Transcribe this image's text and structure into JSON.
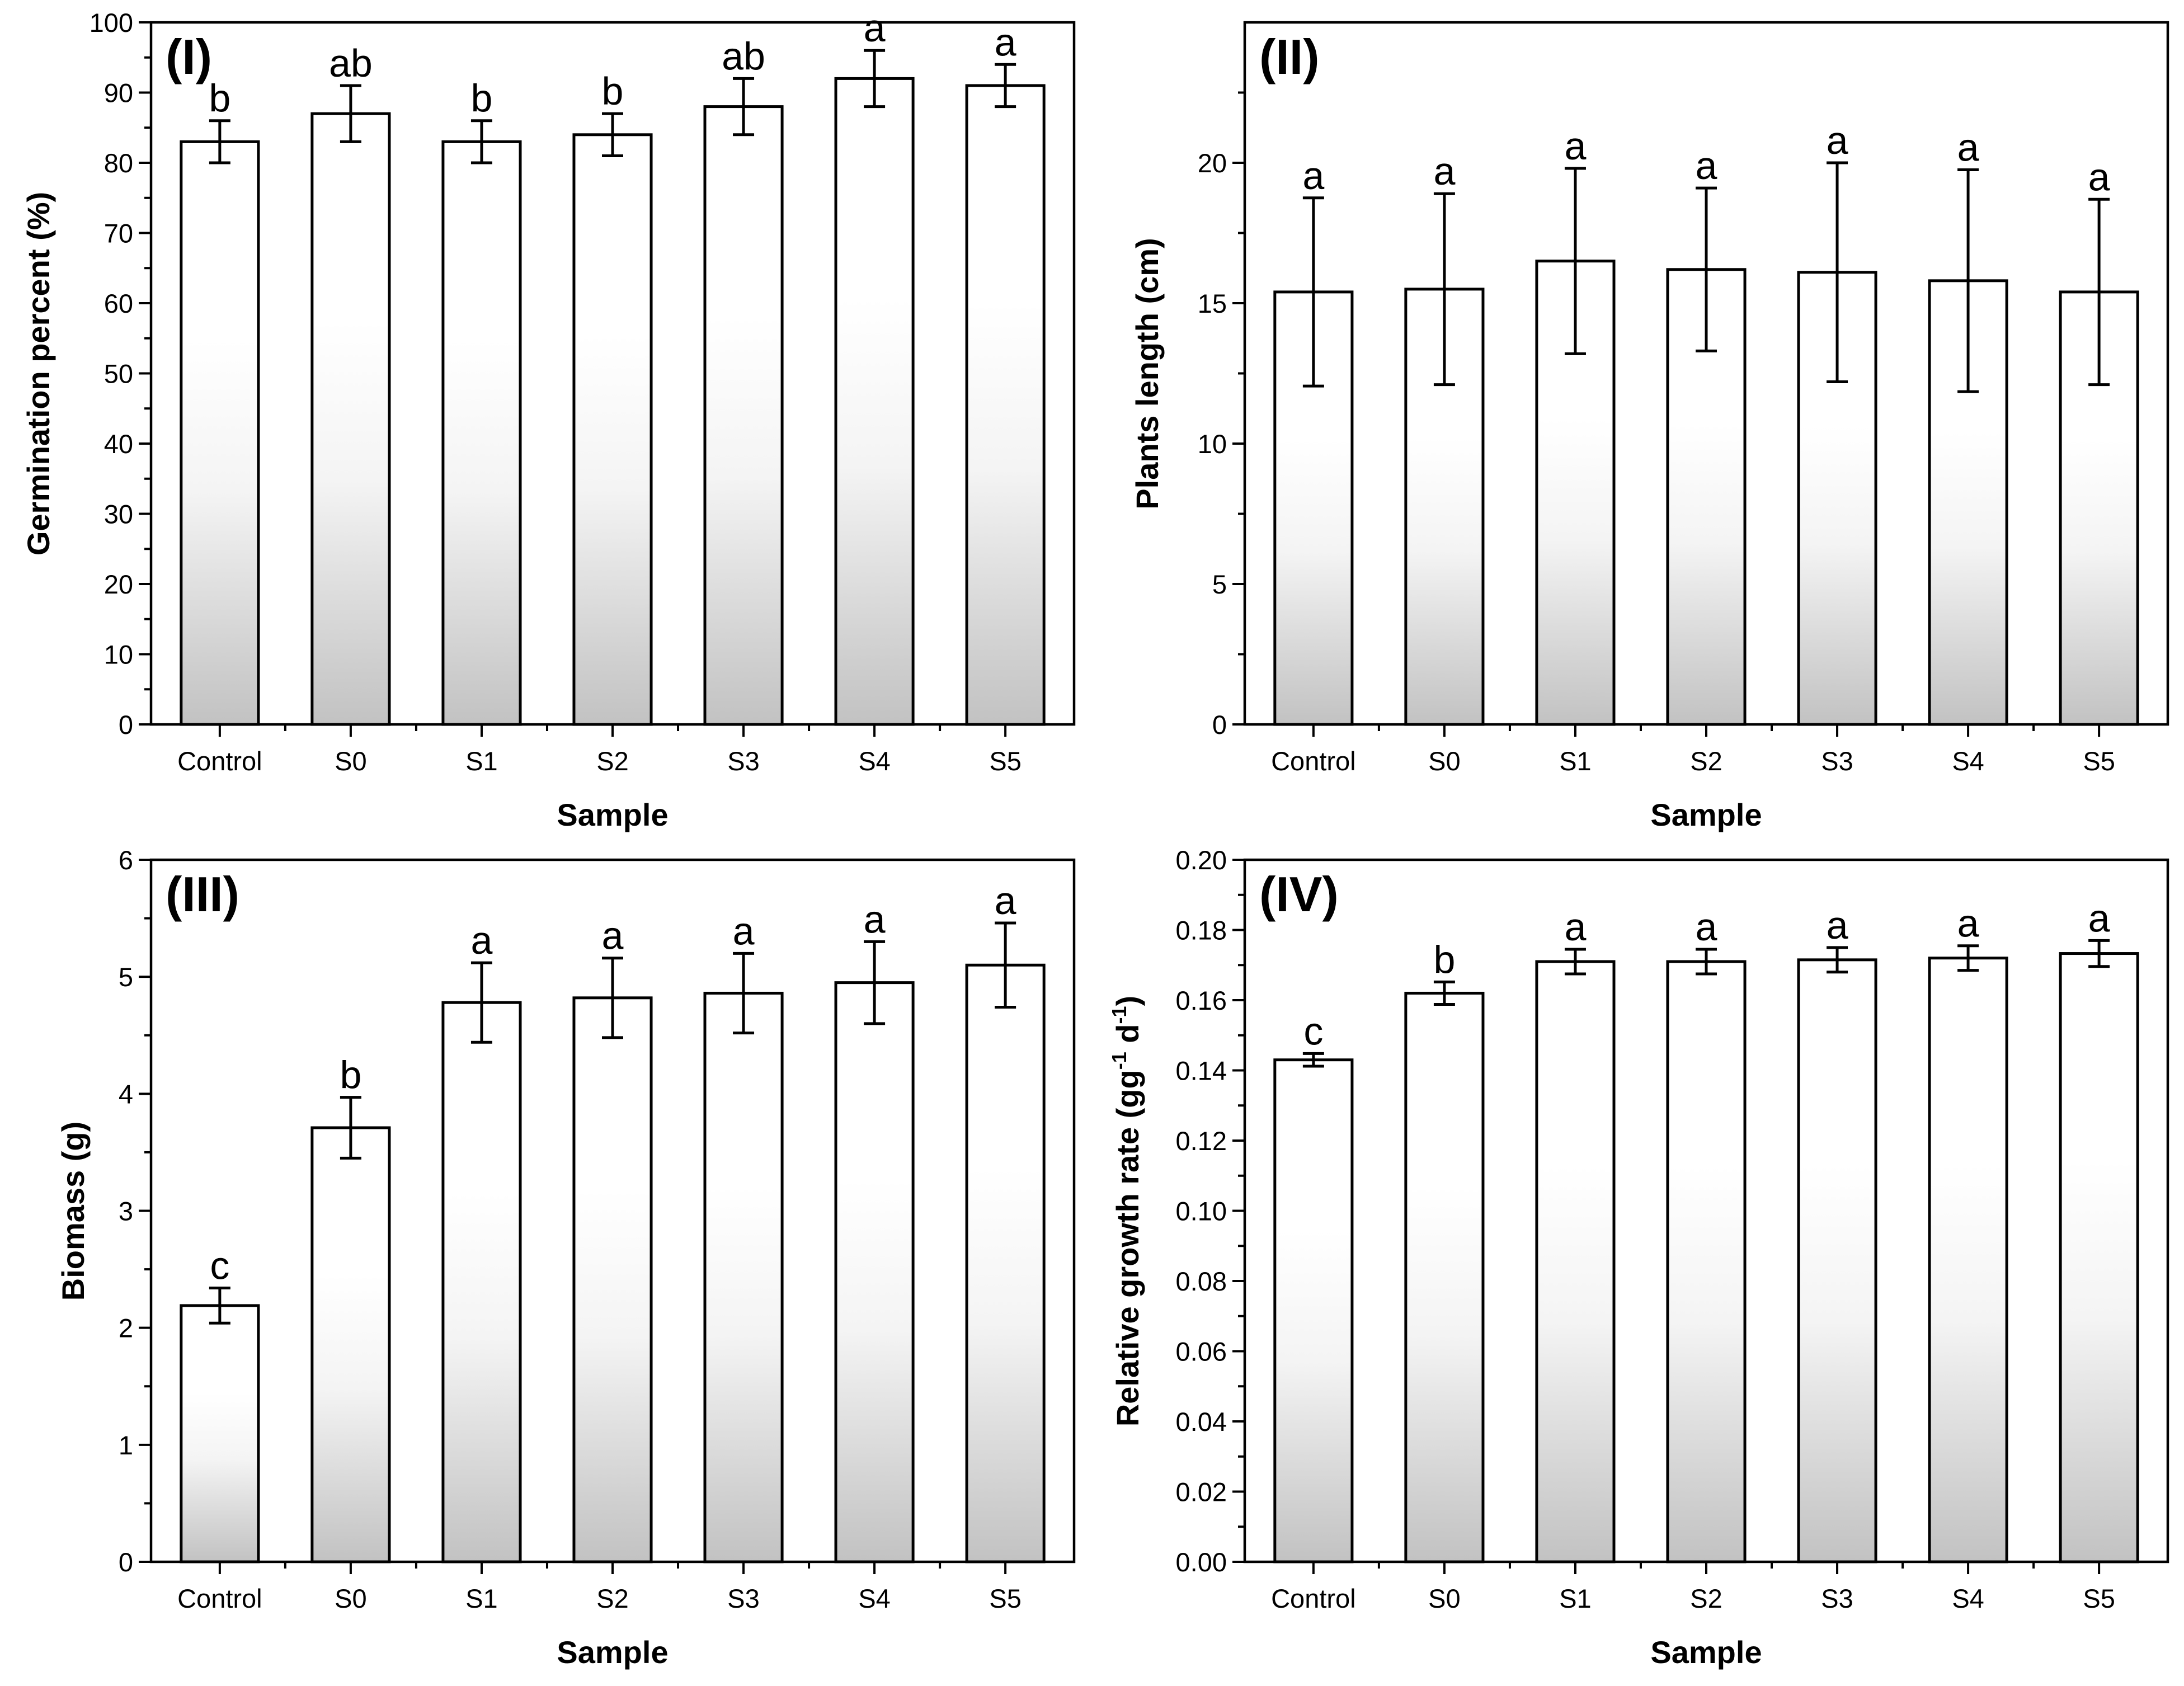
{
  "colors": {
    "axis": "#000000",
    "bar_stroke": "#000000",
    "bar_fill_top": "#ffffff",
    "bar_fill_mid": "#f4f4f4",
    "bar_fill_bottom": "#c2c2c2"
  },
  "chart_data": [
    {
      "type": "bar",
      "panel_label": "(I)",
      "title": "",
      "xlabel": "Sample",
      "ylabel": "Germination percent (%)",
      "ylim": [
        0,
        100
      ],
      "yticks": [
        0,
        10,
        20,
        30,
        40,
        50,
        60,
        70,
        80,
        90,
        100
      ],
      "ytick_labels": [
        "0",
        "10",
        "20",
        "30",
        "40",
        "50",
        "60",
        "70",
        "80",
        "90",
        "100"
      ],
      "categories": [
        "Control",
        "S0",
        "S1",
        "S2",
        "S3",
        "S4",
        "S5"
      ],
      "values": [
        83,
        87,
        83,
        84,
        88,
        92,
        91
      ],
      "errors": [
        3,
        4,
        3,
        3,
        4,
        4,
        3
      ],
      "significance": [
        "b",
        "ab",
        "b",
        "b",
        "ab",
        "a",
        "a"
      ],
      "grid": false
    },
    {
      "type": "bar",
      "panel_label": "(II)",
      "title": "",
      "xlabel": "Sample",
      "ylabel": "Plants length (cm)",
      "ylim": [
        0,
        25
      ],
      "yticks": [
        0,
        5,
        10,
        15,
        20
      ],
      "ytick_labels": [
        "0",
        "5",
        "10",
        "15",
        "20"
      ],
      "categories": [
        "Control",
        "S0",
        "S1",
        "S2",
        "S3",
        "S4",
        "S5"
      ],
      "values": [
        15.4,
        15.5,
        16.5,
        16.2,
        16.1,
        15.8,
        15.4
      ],
      "errors": [
        3.35,
        3.4,
        3.3,
        2.9,
        3.9,
        3.95,
        3.3
      ],
      "significance": [
        "a",
        "a",
        "a",
        "a",
        "a",
        "a",
        "a"
      ],
      "grid": false
    },
    {
      "type": "bar",
      "panel_label": "(III)",
      "title": "",
      "xlabel": "Sample",
      "ylabel": "Biomass (g)",
      "ylim": [
        0,
        6
      ],
      "yticks": [
        0,
        1,
        2,
        3,
        4,
        5,
        6
      ],
      "ytick_labels": [
        "0",
        "1",
        "2",
        "3",
        "4",
        "5",
        "6"
      ],
      "categories": [
        "Control",
        "S0",
        "S1",
        "S2",
        "S3",
        "S4",
        "S5"
      ],
      "values": [
        2.19,
        3.71,
        4.78,
        4.82,
        4.86,
        4.95,
        5.1
      ],
      "errors": [
        0.15,
        0.26,
        0.34,
        0.34,
        0.34,
        0.35,
        0.36
      ],
      "significance": [
        "c",
        "b",
        "a",
        "a",
        "a",
        "a",
        "a"
      ],
      "grid": false
    },
    {
      "type": "bar",
      "panel_label": "(IV)",
      "title": "",
      "xlabel": "Sample",
      "ylabel_parts": [
        "Relative growth rate (gg",
        "-1",
        " d",
        "-1",
        ")"
      ],
      "ylim": [
        0,
        0.2
      ],
      "yticks": [
        0,
        0.02,
        0.04,
        0.06,
        0.08,
        0.1,
        0.12,
        0.14,
        0.16,
        0.18,
        0.2
      ],
      "ytick_labels": [
        "0.00",
        "0.02",
        "0.04",
        "0.06",
        "0.08",
        "0.10",
        "0.12",
        "0.14",
        "0.16",
        "0.18",
        "0.20"
      ],
      "categories": [
        "Control",
        "S0",
        "S1",
        "S2",
        "S3",
        "S4",
        "S5"
      ],
      "values": [
        0.143,
        0.162,
        0.171,
        0.171,
        0.1715,
        0.172,
        0.1733
      ],
      "errors": [
        0.0018,
        0.0032,
        0.0035,
        0.0035,
        0.0035,
        0.0035,
        0.0037
      ],
      "significance": [
        "c",
        "b",
        "a",
        "a",
        "a",
        "a",
        "a"
      ],
      "grid": false
    }
  ]
}
